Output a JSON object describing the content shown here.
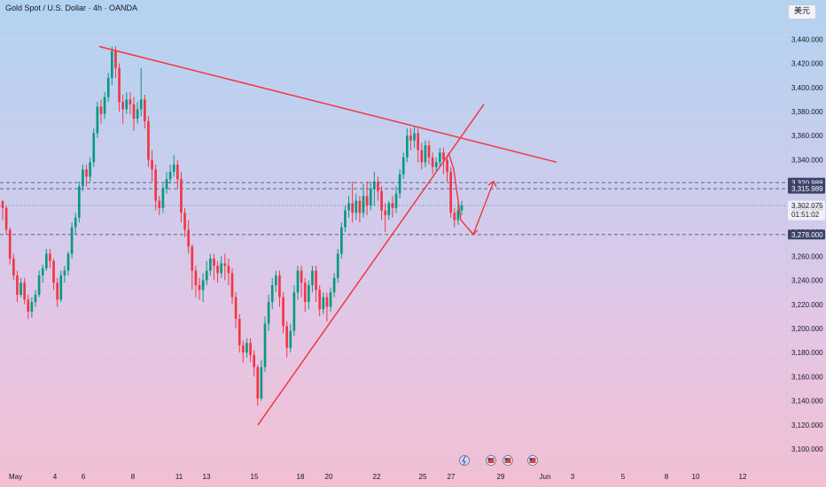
{
  "header": {
    "title": "Gold Spot / U.S. Dollar · 4h · OANDA",
    "currency_button": "美元"
  },
  "colors": {
    "up": "#089981",
    "down": "#f23645",
    "trendline": "#f23645",
    "level_line": "#4a5178",
    "current_line": "#3a7a8a"
  },
  "chart_data": {
    "type": "candlestick",
    "title": "Gold Spot / U.S. Dollar · 4h · OANDA",
    "y_axis": {
      "ticks": [
        "3,440.000",
        "3,420.000",
        "3,400.000",
        "3,380.000",
        "3,360.000",
        "3,340.000",
        "3,320.000",
        "3,300.000",
        "3,280.000",
        "3,260.000",
        "3,240.000",
        "3,220.000",
        "3,200.000",
        "3,180.000",
        "3,160.000",
        "3,140.000",
        "3,120.000",
        "3,100.000"
      ],
      "range": [
        3092,
        3452
      ]
    },
    "x_axis": {
      "ticks": [
        "May",
        "4",
        "6",
        "8",
        "11",
        "13",
        "15",
        "18",
        "20",
        "22",
        "25",
        "27",
        "29",
        "Jun",
        "3",
        "5",
        "8",
        "10",
        "12"
      ]
    },
    "price_badges": [
      {
        "label": "3,320.988",
        "value": 3321
      },
      {
        "label": "3,315.989",
        "value": 3316
      },
      {
        "label": "3,302.075",
        "sublabel": "01:51:02",
        "value": 3302
      },
      {
        "label": "3,278.000",
        "value": 3278
      }
    ],
    "candles": [
      [
        3306,
        3300,
        3290,
        3304
      ],
      [
        3300,
        3282,
        3278,
        3302
      ],
      [
        3282,
        3258,
        3253,
        3284
      ],
      [
        3258,
        3244,
        3240,
        3262
      ],
      [
        3244,
        3228,
        3222,
        3248
      ],
      [
        3228,
        3238,
        3226,
        3242
      ],
      [
        3238,
        3224,
        3220,
        3242
      ],
      [
        3224,
        3214,
        3208,
        3228
      ],
      [
        3214,
        3222,
        3209,
        3226
      ],
      [
        3222,
        3228,
        3218,
        3232
      ],
      [
        3228,
        3244,
        3226,
        3248
      ],
      [
        3244,
        3250,
        3238,
        3253
      ],
      [
        3250,
        3262,
        3248,
        3266
      ],
      [
        3262,
        3256,
        3250,
        3266
      ],
      [
        3256,
        3238,
        3232,
        3258
      ],
      [
        3238,
        3224,
        3218,
        3242
      ],
      [
        3224,
        3244,
        3222,
        3248
      ],
      [
        3244,
        3248,
        3238,
        3252
      ],
      [
        3248,
        3262,
        3244,
        3264
      ],
      [
        3262,
        3284,
        3258,
        3288
      ],
      [
        3284,
        3292,
        3278,
        3296
      ],
      [
        3292,
        3318,
        3288,
        3322
      ],
      [
        3318,
        3332,
        3314,
        3336
      ],
      [
        3332,
        3326,
        3318,
        3336
      ],
      [
        3326,
        3338,
        3322,
        3342
      ],
      [
        3338,
        3362,
        3334,
        3366
      ],
      [
        3362,
        3384,
        3358,
        3388
      ],
      [
        3384,
        3378,
        3370,
        3390
      ],
      [
        3378,
        3392,
        3374,
        3396
      ],
      [
        3392,
        3408,
        3388,
        3412
      ],
      [
        3408,
        3430,
        3402,
        3434
      ],
      [
        3430,
        3416,
        3408,
        3434
      ],
      [
        3416,
        3388,
        3380,
        3420
      ],
      [
        3388,
        3382,
        3370,
        3394
      ],
      [
        3382,
        3390,
        3378,
        3396
      ],
      [
        3390,
        3386,
        3378,
        3396
      ],
      [
        3386,
        3374,
        3364,
        3392
      ],
      [
        3374,
        3382,
        3370,
        3388
      ],
      [
        3382,
        3390,
        3376,
        3416
      ],
      [
        3390,
        3372,
        3366,
        3394
      ],
      [
        3372,
        3340,
        3334,
        3376
      ],
      [
        3340,
        3332,
        3322,
        3348
      ],
      [
        3332,
        3306,
        3298,
        3336
      ],
      [
        3306,
        3300,
        3294,
        3310
      ],
      [
        3300,
        3316,
        3296,
        3320
      ],
      [
        3316,
        3324,
        3312,
        3330
      ],
      [
        3324,
        3330,
        3320,
        3336
      ],
      [
        3330,
        3336,
        3326,
        3344
      ],
      [
        3336,
        3324,
        3316,
        3340
      ],
      [
        3324,
        3296,
        3288,
        3330
      ],
      [
        3296,
        3282,
        3276,
        3300
      ],
      [
        3282,
        3268,
        3262,
        3290
      ],
      [
        3268,
        3248,
        3232,
        3270
      ],
      [
        3248,
        3236,
        3226,
        3252
      ],
      [
        3236,
        3232,
        3224,
        3242
      ],
      [
        3232,
        3240,
        3222,
        3246
      ],
      [
        3240,
        3248,
        3236,
        3256
      ],
      [
        3248,
        3258,
        3244,
        3262
      ],
      [
        3258,
        3252,
        3240,
        3262
      ],
      [
        3252,
        3246,
        3238,
        3256
      ],
      [
        3246,
        3254,
        3242,
        3260
      ],
      [
        3254,
        3252,
        3240,
        3262
      ],
      [
        3252,
        3246,
        3236,
        3258
      ],
      [
        3246,
        3226,
        3220,
        3250
      ],
      [
        3226,
        3208,
        3200,
        3230
      ],
      [
        3208,
        3186,
        3180,
        3212
      ],
      [
        3186,
        3180,
        3172,
        3190
      ],
      [
        3180,
        3188,
        3176,
        3192
      ],
      [
        3188,
        3178,
        3172,
        3192
      ],
      [
        3178,
        3168,
        3160,
        3182
      ],
      [
        3168,
        3142,
        3136,
        3170
      ],
      [
        3142,
        3168,
        3140,
        3174
      ],
      [
        3168,
        3204,
        3164,
        3210
      ],
      [
        3204,
        3222,
        3198,
        3228
      ],
      [
        3222,
        3236,
        3216,
        3242
      ],
      [
        3236,
        3244,
        3230,
        3248
      ],
      [
        3244,
        3226,
        3218,
        3248
      ],
      [
        3226,
        3202,
        3196,
        3230
      ],
      [
        3202,
        3184,
        3176,
        3206
      ],
      [
        3184,
        3198,
        3180,
        3204
      ],
      [
        3198,
        3230,
        3194,
        3236
      ],
      [
        3230,
        3248,
        3224,
        3252
      ],
      [
        3248,
        3238,
        3226,
        3252
      ],
      [
        3238,
        3222,
        3214,
        3242
      ],
      [
        3222,
        3236,
        3216,
        3240
      ],
      [
        3236,
        3248,
        3230,
        3252
      ],
      [
        3248,
        3232,
        3222,
        3252
      ],
      [
        3232,
        3216,
        3210,
        3236
      ],
      [
        3216,
        3226,
        3212,
        3230
      ],
      [
        3226,
        3218,
        3206,
        3230
      ],
      [
        3218,
        3230,
        3214,
        3234
      ],
      [
        3230,
        3242,
        3226,
        3246
      ],
      [
        3242,
        3262,
        3238,
        3266
      ],
      [
        3262,
        3284,
        3258,
        3288
      ],
      [
        3284,
        3298,
        3280,
        3302
      ],
      [
        3298,
        3304,
        3292,
        3310
      ],
      [
        3304,
        3296,
        3288,
        3322
      ],
      [
        3296,
        3306,
        3290,
        3312
      ],
      [
        3306,
        3296,
        3288,
        3310
      ],
      [
        3296,
        3310,
        3292,
        3320
      ],
      [
        3310,
        3302,
        3294,
        3322
      ],
      [
        3302,
        3316,
        3298,
        3322
      ],
      [
        3316,
        3322,
        3302,
        3330
      ],
      [
        3322,
        3314,
        3306,
        3326
      ],
      [
        3314,
        3298,
        3290,
        3318
      ],
      [
        3298,
        3294,
        3280,
        3304
      ],
      [
        3294,
        3304,
        3290,
        3306
      ],
      [
        3304,
        3300,
        3292,
        3310
      ],
      [
        3300,
        3312,
        3296,
        3318
      ],
      [
        3312,
        3328,
        3308,
        3332
      ],
      [
        3328,
        3342,
        3324,
        3346
      ],
      [
        3342,
        3360,
        3338,
        3366
      ],
      [
        3360,
        3356,
        3348,
        3366
      ],
      [
        3356,
        3362,
        3350,
        3368
      ],
      [
        3362,
        3348,
        3338,
        3366
      ],
      [
        3348,
        3338,
        3332,
        3354
      ],
      [
        3338,
        3352,
        3334,
        3356
      ],
      [
        3352,
        3342,
        3336,
        3356
      ],
      [
        3342,
        3334,
        3328,
        3346
      ],
      [
        3334,
        3338,
        3330,
        3342
      ],
      [
        3338,
        3346,
        3334,
        3350
      ],
      [
        3346,
        3340,
        3328,
        3350
      ],
      [
        3340,
        3330,
        3322,
        3344
      ],
      [
        3330,
        3296,
        3292,
        3334
      ],
      [
        3296,
        3290,
        3284,
        3300
      ],
      [
        3290,
        3298,
        3286,
        3304
      ],
      [
        3298,
        3302,
        3294,
        3306
      ]
    ],
    "annotations": [
      {
        "type": "trendline",
        "from": [
          112,
          3434
        ],
        "to": [
          628,
          3338
        ]
      },
      {
        "type": "trendline",
        "from": [
          291,
          3120
        ],
        "to": [
          546,
          3386
        ]
      },
      {
        "type": "projection-arrow",
        "points": [
          [
            506,
            3346
          ],
          [
            512,
            3332
          ],
          [
            520,
            3290
          ],
          [
            534,
            3278
          ],
          [
            557,
            3322
          ]
        ]
      }
    ]
  }
}
